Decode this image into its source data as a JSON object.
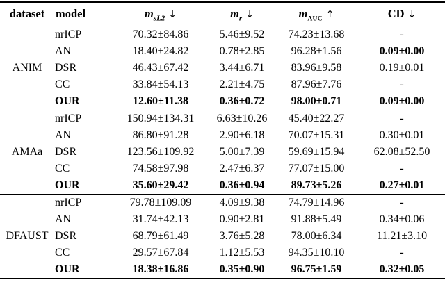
{
  "table": {
    "header": {
      "dataset": "dataset",
      "model": "model",
      "col_msl2": {
        "base": "m",
        "sub": "sL2",
        "arrow": "↓"
      },
      "col_mr": {
        "base": "m",
        "sub": "r",
        "arrow": "↓"
      },
      "col_mauc": {
        "base": "m",
        "sub": "AUC",
        "arrow": "↑"
      },
      "col_cd": {
        "label": "CD",
        "arrow": "↓"
      }
    },
    "blocks": [
      {
        "dataset": "ANIM",
        "rows": [
          {
            "model": "nrICP",
            "msl2": "70.32±84.86",
            "mr": "5.46±9.52",
            "mauc": "74.23±13.68",
            "cd": "-"
          },
          {
            "model": "AN",
            "msl2": "18.40±24.82",
            "mr": "0.78±2.85",
            "mauc": "96.28±1.56",
            "cd": "0.09±0.00"
          },
          {
            "model": "DSR",
            "msl2": "46.43±67.42",
            "mr": "3.44±6.71",
            "mauc": "83.96±9.58",
            "cd": "0.19±0.01"
          },
          {
            "model": "CC",
            "msl2": "33.84±54.13",
            "mr": "2.21±4.75",
            "mauc": "87.96±7.76",
            "cd": "-"
          },
          {
            "model": "OUR",
            "msl2": "12.60±11.38",
            "mr": "0.36±0.72",
            "mauc": "98.00±0.71",
            "cd": "0.09±0.00"
          }
        ]
      },
      {
        "dataset": "AMAa",
        "rows": [
          {
            "model": "nrICP",
            "msl2": "150.94±134.31",
            "mr": "6.63±10.26",
            "mauc": "45.40±22.27",
            "cd": "-"
          },
          {
            "model": "AN",
            "msl2": "86.80±91.28",
            "mr": "2.90±6.18",
            "mauc": "70.07±15.31",
            "cd": "0.30±0.01"
          },
          {
            "model": "DSR",
            "msl2": "123.56±109.92",
            "mr": "5.00±7.39",
            "mauc": "59.69±15.94",
            "cd": "62.08±52.50"
          },
          {
            "model": "CC",
            "msl2": "74.58±97.98",
            "mr": "2.47±6.37",
            "mauc": "77.07±15.00",
            "cd": "-"
          },
          {
            "model": "OUR",
            "msl2": "35.60±29.42",
            "mr": "0.36±0.94",
            "mauc": "89.73±5.26",
            "cd": "0.27±0.01"
          }
        ]
      },
      {
        "dataset": "DFAUST",
        "rows": [
          {
            "model": "nrICP",
            "msl2": "79.78±109.09",
            "mr": "4.09±9.38",
            "mauc": "74.79±14.96",
            "cd": "-"
          },
          {
            "model": "AN",
            "msl2": "31.74±42.13",
            "mr": "0.90±2.81",
            "mauc": "91.88±5.49",
            "cd": "0.34±0.06"
          },
          {
            "model": "DSR",
            "msl2": "68.79±61.49",
            "mr": "3.76±5.28",
            "mauc": "78.00±6.34",
            "cd": "11.21±3.10"
          },
          {
            "model": "CC",
            "msl2": "29.57±67.84",
            "mr": "1.12±5.53",
            "mauc": "94.35±10.10",
            "cd": "-"
          },
          {
            "model": "OUR",
            "msl2": "18.38±16.86",
            "mr": "0.35±0.90",
            "mauc": "96.75±1.59",
            "cd": "0.32±0.05"
          }
        ]
      }
    ]
  },
  "colors": {
    "text": "#000000",
    "background": "#ffffff",
    "rule": "#000000"
  }
}
